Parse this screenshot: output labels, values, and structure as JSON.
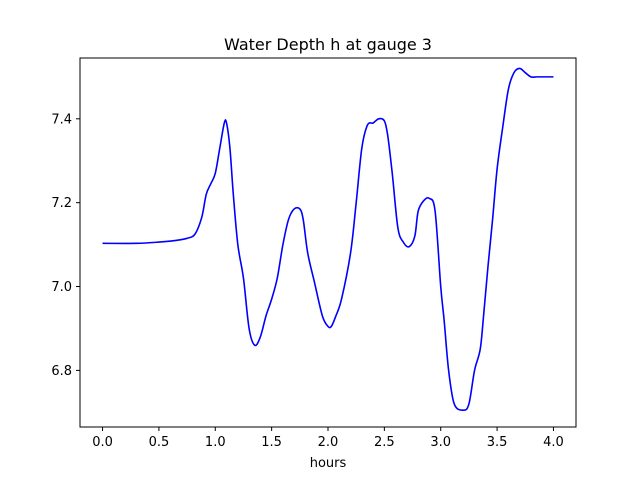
{
  "chart_data": {
    "type": "line",
    "title": "Water Depth h at gauge 3",
    "xlabel": "hours",
    "ylabel": "",
    "xlim": [
      -0.2,
      4.2
    ],
    "ylim": [
      6.665,
      7.545
    ],
    "xticks": [
      0.0,
      0.5,
      1.0,
      1.5,
      2.0,
      2.5,
      3.0,
      3.5,
      4.0
    ],
    "xtick_labels": [
      "0.0",
      "0.5",
      "1.0",
      "1.5",
      "2.0",
      "2.5",
      "3.0",
      "3.5",
      "4.0"
    ],
    "yticks": [
      6.8,
      7.0,
      7.2,
      7.4
    ],
    "ytick_labels": [
      "6.8",
      "7.0",
      "7.2",
      "7.4"
    ],
    "grid": false,
    "series": [
      {
        "color": "#0000ff",
        "x": [
          0.0,
          0.3,
          0.5,
          0.65,
          0.75,
          0.82,
          0.88,
          0.92,
          0.96,
          1.0,
          1.04,
          1.08,
          1.1,
          1.13,
          1.16,
          1.2,
          1.25,
          1.3,
          1.35,
          1.4,
          1.45,
          1.5,
          1.55,
          1.6,
          1.65,
          1.7,
          1.75,
          1.78,
          1.82,
          1.88,
          1.95,
          2.0,
          2.03,
          2.07,
          2.12,
          2.2,
          2.25,
          2.3,
          2.35,
          2.4,
          2.45,
          2.5,
          2.53,
          2.57,
          2.62,
          2.67,
          2.72,
          2.77,
          2.8,
          2.85,
          2.9,
          2.95,
          3.0,
          3.03,
          3.07,
          3.12,
          3.2,
          3.25,
          3.3,
          3.35,
          3.38,
          3.42,
          3.46,
          3.5,
          3.55,
          3.6,
          3.65,
          3.7,
          3.75,
          3.8,
          3.85,
          3.9,
          3.93,
          3.97,
          4.0
        ],
        "y": [
          7.103,
          7.103,
          7.106,
          7.11,
          7.115,
          7.125,
          7.165,
          7.22,
          7.245,
          7.27,
          7.33,
          7.39,
          7.39,
          7.33,
          7.22,
          7.1,
          7.02,
          6.9,
          6.86,
          6.88,
          6.93,
          6.97,
          7.02,
          7.1,
          7.16,
          7.185,
          7.185,
          7.16,
          7.08,
          7.01,
          6.93,
          6.905,
          6.905,
          6.93,
          6.97,
          7.08,
          7.2,
          7.33,
          7.385,
          7.39,
          7.4,
          7.395,
          7.36,
          7.27,
          7.14,
          7.105,
          7.095,
          7.12,
          7.18,
          7.205,
          7.21,
          7.18,
          7.0,
          6.92,
          6.8,
          6.72,
          6.705,
          6.72,
          6.8,
          6.85,
          6.93,
          7.05,
          7.16,
          7.28,
          7.38,
          7.47,
          7.51,
          7.52,
          7.51,
          7.5,
          7.5,
          7.5,
          7.5,
          7.5,
          7.5
        ]
      }
    ]
  }
}
